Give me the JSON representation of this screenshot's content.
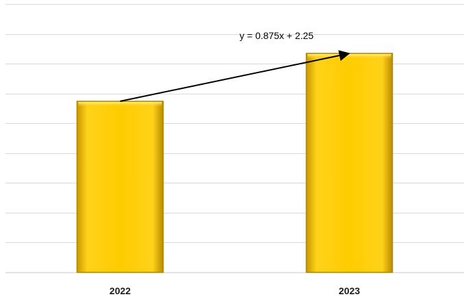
{
  "chart_data": {
    "type": "bar",
    "categories": [
      "2022",
      "2023"
    ],
    "values": [
      3.125,
      4.0
    ],
    "ylim": [
      0,
      4.9
    ],
    "grid": true,
    "legend": "none",
    "title": "",
    "xlabel": "",
    "ylabel": "",
    "bar_color": "#ffcc00",
    "bar_edge_color": "#b08a00",
    "gridline_color": "#d9d9d9",
    "trendline": {
      "type": "linear",
      "slope": 0.875,
      "intercept": 2.25,
      "equation": "y = 0.875x + 2.25",
      "color": "#000000"
    }
  }
}
